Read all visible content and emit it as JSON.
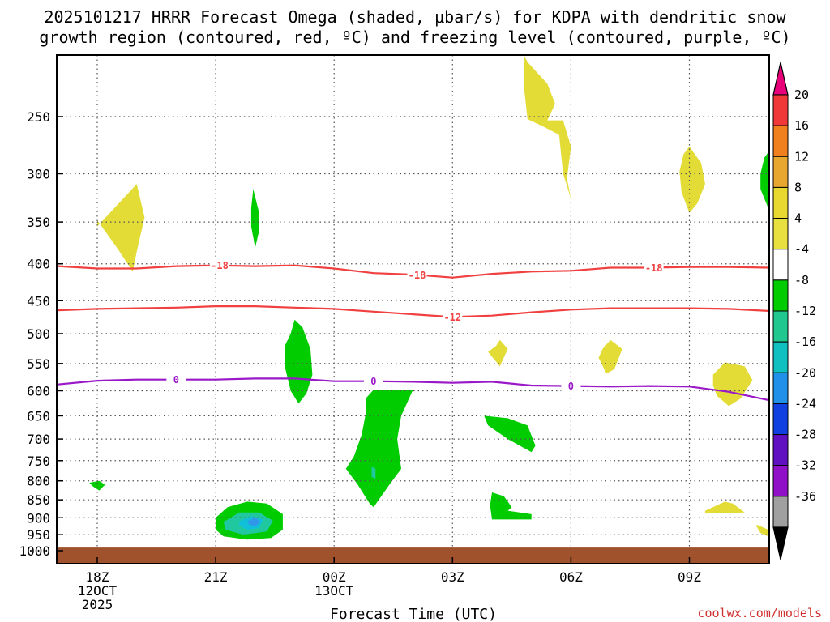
{
  "chart_data": {
    "type": "heatmap",
    "title_line1": "2025101217 HRRR Forecast Omega (shaded, μbar/s) for KDPA with dendritic snow",
    "title_line2": "growth region (contoured, red, ºC) and freezing level (contoured, purple, ºC)",
    "xlabel": "Forecast Time (UTC)",
    "credit": "coolwx.com/models",
    "x_range_hours": [
      -1,
      17
    ],
    "y_range_hPa": [
      1025,
      200
    ],
    "y_ticks": [
      250,
      300,
      350,
      400,
      450,
      500,
      550,
      600,
      650,
      700,
      750,
      800,
      850,
      900,
      950,
      1000
    ],
    "x_ticks": [
      {
        "hour": 0,
        "lines": [
          "18Z",
          "12OCT",
          "2025"
        ]
      },
      {
        "hour": 3,
        "lines": [
          "21Z"
        ]
      },
      {
        "hour": 6,
        "lines": [
          "00Z",
          "13OCT"
        ]
      },
      {
        "hour": 9,
        "lines": [
          "03Z"
        ]
      },
      {
        "hour": 12,
        "lines": [
          "06Z"
        ]
      },
      {
        "hour": 15,
        "lines": [
          "09Z"
        ]
      }
    ],
    "colorbar": {
      "levels": [
        20,
        16,
        12,
        8,
        4,
        -4,
        -8,
        -12,
        -16,
        -20,
        -24,
        -28,
        -32,
        -36
      ],
      "colors": [
        "#e8007a",
        "#f03838",
        "#f07f1e",
        "#e8a830",
        "#e8d830",
        "#e8e040",
        "#ffffff",
        "#00cc00",
        "#20c890",
        "#10c0c0",
        "#2090e8",
        "#1040e0",
        "#6010c0",
        "#9010c8",
        "#a0a0a0",
        "#000000"
      ]
    },
    "ground_pressure_hPa": 990,
    "contours": [
      {
        "name": "dendritic-upper",
        "label": "-18",
        "color": "#f04040",
        "label_hours": [
          3.1,
          8.1,
          14.1
        ],
        "points": [
          [
            -1,
            403
          ],
          [
            0,
            406
          ],
          [
            1,
            406
          ],
          [
            2,
            403
          ],
          [
            3,
            402
          ],
          [
            4,
            403
          ],
          [
            5,
            402
          ],
          [
            6,
            406
          ],
          [
            7,
            412
          ],
          [
            8,
            414
          ],
          [
            9,
            418
          ],
          [
            10,
            413
          ],
          [
            11,
            410
          ],
          [
            12,
            409
          ],
          [
            13,
            405
          ],
          [
            14,
            405
          ],
          [
            15,
            404
          ],
          [
            16,
            404
          ],
          [
            17,
            405
          ]
        ]
      },
      {
        "name": "dendritic-lower",
        "label": "-12",
        "color": "#f04040",
        "label_hours": [
          9.0
        ],
        "points": [
          [
            -1,
            464
          ],
          [
            0,
            462
          ],
          [
            1,
            461
          ],
          [
            2,
            460
          ],
          [
            3,
            458
          ],
          [
            4,
            458
          ],
          [
            5,
            460
          ],
          [
            6,
            462
          ],
          [
            7,
            466
          ],
          [
            8,
            470
          ],
          [
            9,
            474
          ],
          [
            10,
            472
          ],
          [
            11,
            467
          ],
          [
            12,
            463
          ],
          [
            13,
            461
          ],
          [
            14,
            461
          ],
          [
            15,
            461
          ],
          [
            16,
            462
          ],
          [
            17,
            465
          ]
        ]
      },
      {
        "name": "freezing-level",
        "label": "0",
        "color": "#9a18c8",
        "label_hours": [
          2.0,
          7.0,
          12.0
        ],
        "points": [
          [
            -1,
            588
          ],
          [
            0,
            581
          ],
          [
            1,
            579
          ],
          [
            2,
            579
          ],
          [
            3,
            579
          ],
          [
            4,
            577
          ],
          [
            5,
            577
          ],
          [
            6,
            582
          ],
          [
            7,
            582
          ],
          [
            8,
            583
          ],
          [
            9,
            585
          ],
          [
            10,
            583
          ],
          [
            11,
            590
          ],
          [
            12,
            591
          ],
          [
            13,
            592
          ],
          [
            14,
            591
          ],
          [
            15,
            592
          ],
          [
            16,
            602
          ],
          [
            17,
            618
          ]
        ]
      }
    ],
    "omega_regions": [
      {
        "name": "omega-positive-1",
        "value": 4,
        "color": "#e4dc36",
        "points": [
          [
            0,
            355
          ],
          [
            1,
            310
          ],
          [
            1.2,
            345
          ],
          [
            1.0,
            385
          ],
          [
            0.9,
            410
          ],
          [
            0.5,
            380
          ],
          [
            0,
            348
          ]
        ]
      },
      {
        "name": "omega-positive-2",
        "value": 4,
        "color": "#e4dc36",
        "points": [
          [
            10.8,
            205
          ],
          [
            10.9,
            210
          ],
          [
            11.4,
            225
          ],
          [
            11.6,
            240
          ],
          [
            11.4,
            253
          ],
          [
            11.8,
            253
          ],
          [
            12.0,
            275
          ],
          [
            11.9,
            305
          ],
          [
            12.0,
            325
          ],
          [
            11.8,
            300
          ],
          [
            11.7,
            265
          ],
          [
            11.3,
            258
          ],
          [
            10.9,
            252
          ],
          [
            10.8,
            225
          ]
        ]
      },
      {
        "name": "omega-positive-3",
        "value": 4,
        "color": "#e4dc36",
        "points": [
          [
            15.0,
            275
          ],
          [
            15.3,
            290
          ],
          [
            15.4,
            310
          ],
          [
            15.2,
            330
          ],
          [
            15.0,
            340
          ],
          [
            14.8,
            318
          ],
          [
            14.75,
            298
          ],
          [
            14.85,
            282
          ]
        ]
      },
      {
        "name": "omega-positive-4",
        "value": 4,
        "color": "#e4dc36",
        "points": [
          [
            10.1,
            520
          ],
          [
            10.2,
            510
          ],
          [
            10.4,
            525
          ],
          [
            10.2,
            555
          ],
          [
            9.9,
            530
          ]
        ]
      },
      {
        "name": "omega-positive-5",
        "value": 4,
        "color": "#e4dc36",
        "points": [
          [
            12.8,
            525
          ],
          [
            13.0,
            510
          ],
          [
            13.3,
            525
          ],
          [
            13.1,
            560
          ],
          [
            12.9,
            568
          ],
          [
            12.7,
            540
          ]
        ]
      },
      {
        "name": "omega-positive-6",
        "value": 4,
        "color": "#e4dc36",
        "points": [
          [
            15.6,
            570
          ],
          [
            15.9,
            548
          ],
          [
            16.4,
            555
          ],
          [
            16.6,
            580
          ],
          [
            16.3,
            615
          ],
          [
            16.0,
            630
          ],
          [
            15.7,
            610
          ],
          [
            15.6,
            590
          ]
        ]
      },
      {
        "name": "omega-positive-7",
        "value": 4,
        "color": "#e4dc36",
        "points": [
          [
            15.4,
            880
          ],
          [
            15.9,
            855
          ],
          [
            16.1,
            860
          ],
          [
            16.4,
            885
          ],
          [
            15.4,
            888
          ]
        ]
      },
      {
        "name": "omega-positive-8",
        "value": 4,
        "color": "#e4dc36",
        "points": [
          [
            16.7,
            920
          ],
          [
            17.0,
            935
          ],
          [
            17.0,
            955
          ],
          [
            16.8,
            945
          ],
          [
            16.7,
            925
          ]
        ]
      },
      {
        "name": "omega-negative-1",
        "value": -4,
        "color": "#00cc00",
        "points": [
          [
            3.95,
            315
          ],
          [
            4.1,
            340
          ],
          [
            4.1,
            360
          ],
          [
            4.0,
            380
          ],
          [
            3.9,
            355
          ],
          [
            3.9,
            335
          ]
        ]
      },
      {
        "name": "omega-negative-2",
        "value": -4,
        "color": "#00cc00",
        "points": [
          [
            4.9,
            500
          ],
          [
            5.0,
            478
          ],
          [
            5.2,
            490
          ],
          [
            5.4,
            525
          ],
          [
            5.45,
            570
          ],
          [
            5.3,
            605
          ],
          [
            5.1,
            625
          ],
          [
            4.9,
            600
          ],
          [
            4.75,
            555
          ],
          [
            4.75,
            520
          ]
        ]
      },
      {
        "name": "omega-negative-3",
        "value": -4,
        "color": "#00cc00",
        "points": [
          [
            16.8,
            300
          ],
          [
            16.9,
            285
          ],
          [
            17.0,
            280
          ],
          [
            17.0,
            335
          ],
          [
            16.8,
            315
          ]
        ]
      },
      {
        "name": "omega-negative-4",
        "value": -4,
        "color": "#00cc00",
        "points": [
          [
            6.8,
            615
          ],
          [
            7.0,
            598
          ],
          [
            8.0,
            598
          ],
          [
            7.7,
            650
          ],
          [
            7.6,
            700
          ],
          [
            7.7,
            770
          ],
          [
            7.4,
            810
          ],
          [
            7.0,
            870
          ],
          [
            6.9,
            860
          ],
          [
            6.6,
            810
          ],
          [
            6.3,
            770
          ],
          [
            6.5,
            740
          ],
          [
            6.7,
            690
          ],
          [
            6.8,
            645
          ]
        ]
      },
      {
        "name": "omega-negative-5",
        "value": -4,
        "color": "#00cc00",
        "points": [
          [
            9.8,
            650
          ],
          [
            10.4,
            655
          ],
          [
            10.9,
            670
          ],
          [
            11.1,
            715
          ],
          [
            11.0,
            730
          ],
          [
            10.4,
            700
          ],
          [
            9.9,
            670
          ]
        ]
      },
      {
        "name": "omega-negative-6",
        "value": -4,
        "color": "#00cc00",
        "points": [
          [
            10.0,
            830
          ],
          [
            10.3,
            840
          ],
          [
            10.5,
            870
          ],
          [
            10.4,
            880
          ],
          [
            11.0,
            890
          ],
          [
            11.0,
            905
          ],
          [
            10.0,
            905
          ],
          [
            9.95,
            865
          ]
        ]
      },
      {
        "name": "omega-negative-7",
        "value": -4,
        "color": "#00cc00",
        "points": [
          [
            -0.2,
            805
          ],
          [
            0.05,
            800
          ],
          [
            0.2,
            810
          ],
          [
            0.05,
            825
          ],
          [
            -0.1,
            815
          ]
        ]
      },
      {
        "name": "omega-negative-8",
        "value": -4,
        "color": "#00cc00",
        "points": [
          [
            3.0,
            900
          ],
          [
            3.3,
            870
          ],
          [
            3.8,
            855
          ],
          [
            4.3,
            860
          ],
          [
            4.7,
            890
          ],
          [
            4.7,
            935
          ],
          [
            4.4,
            960
          ],
          [
            3.8,
            965
          ],
          [
            3.2,
            955
          ],
          [
            3.0,
            935
          ]
        ]
      },
      {
        "name": "omega-negative-9",
        "value": -8,
        "color": "#20c8a0",
        "points": [
          [
            3.2,
            912
          ],
          [
            3.6,
            885
          ],
          [
            4.1,
            885
          ],
          [
            4.45,
            908
          ],
          [
            4.3,
            940
          ],
          [
            3.7,
            950
          ],
          [
            3.25,
            935
          ]
        ]
      },
      {
        "name": "omega-negative-10",
        "value": -12,
        "color": "#10c0d8",
        "points": [
          [
            3.6,
            910
          ],
          [
            3.9,
            895
          ],
          [
            4.2,
            905
          ],
          [
            4.1,
            930
          ],
          [
            3.8,
            935
          ],
          [
            3.6,
            922
          ]
        ]
      },
      {
        "name": "omega-negative-11",
        "value": -16,
        "color": "#3098e8",
        "points": [
          [
            3.8,
            910
          ],
          [
            4.0,
            900
          ],
          [
            4.15,
            912
          ],
          [
            4.0,
            925
          ],
          [
            3.85,
            920
          ]
        ]
      },
      {
        "name": "omega-negative-12",
        "value": -8,
        "color": "#20c8a0",
        "points": [
          [
            6.95,
            765
          ],
          [
            7.05,
            770
          ],
          [
            7.05,
            795
          ],
          [
            6.95,
            790
          ]
        ]
      }
    ]
  }
}
